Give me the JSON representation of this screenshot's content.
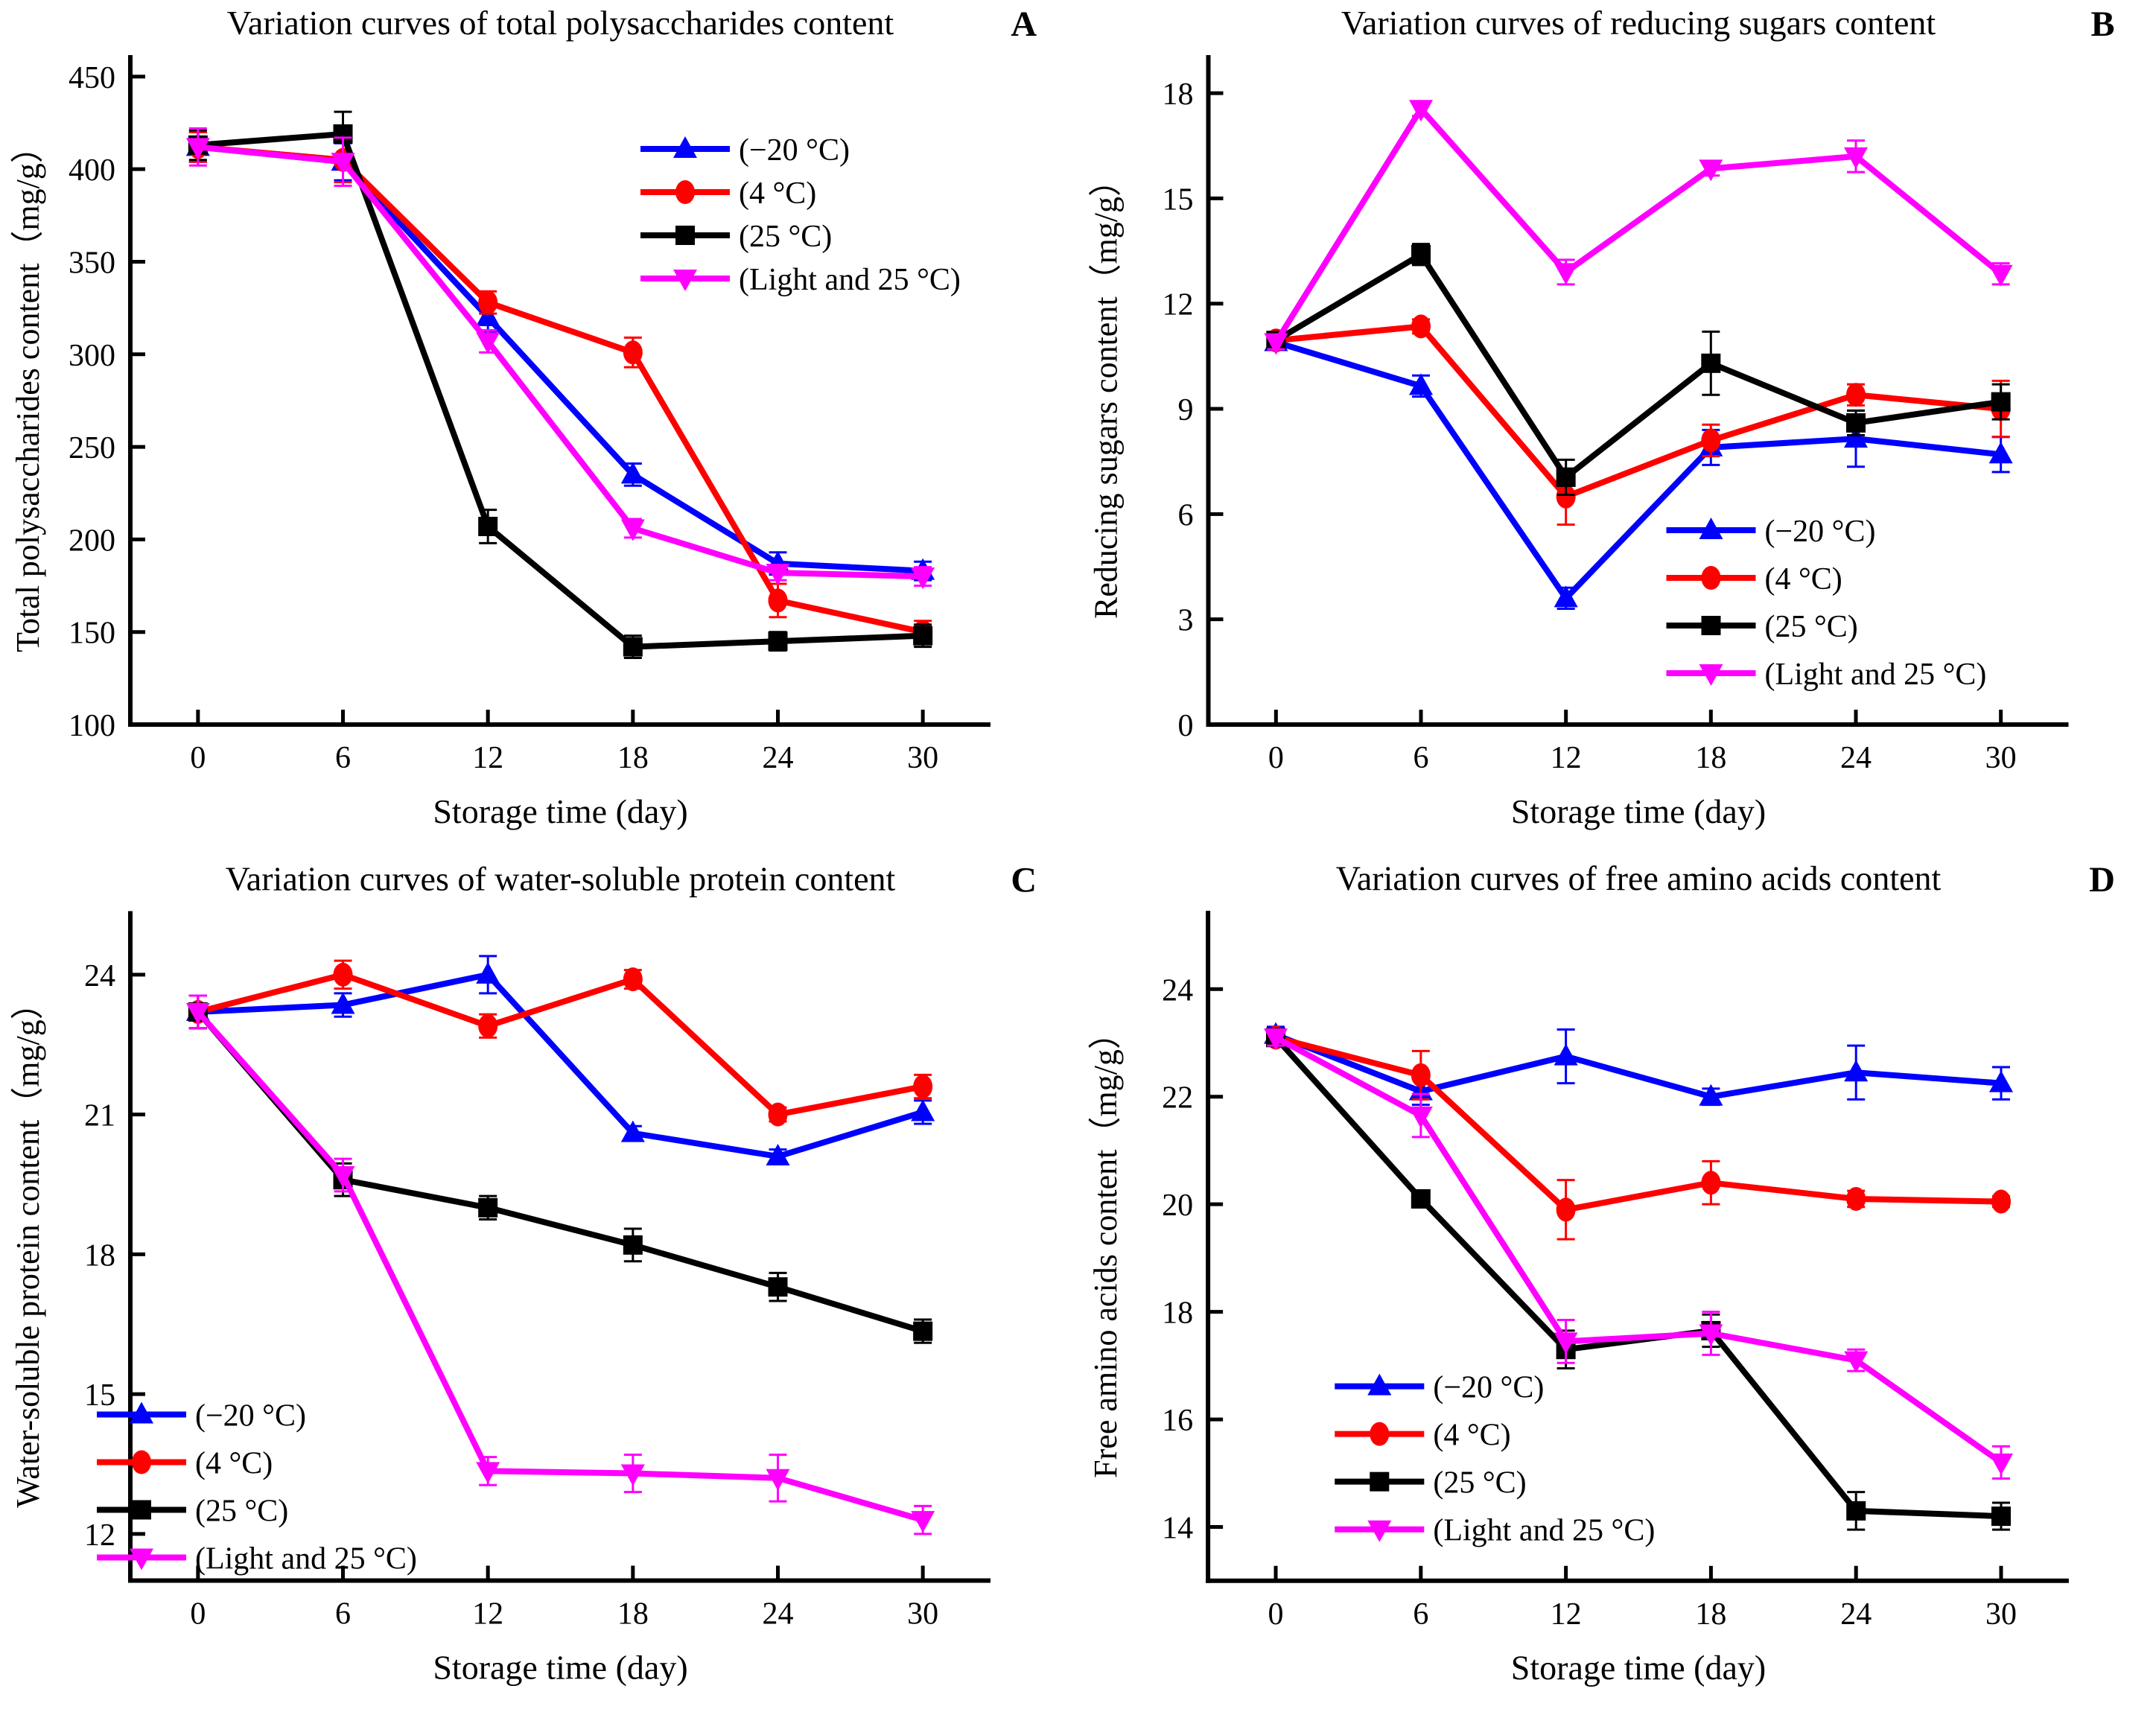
{
  "figure": {
    "background": "#ffffff",
    "xlabel": "Storage time (day)",
    "series_colors": {
      "minus20": "#0000ff",
      "plus4": "#ff0000",
      "plus25": "#000000",
      "light25": "#ff00ff"
    }
  },
  "chart_data": [
    {
      "type": "line",
      "panel_label": "A",
      "title": "Variation curves of total polysaccharides content",
      "xlabel": "Storage time (day)",
      "ylabel": "Total polysaccharides content（mg/g）",
      "x": [
        0,
        6,
        12,
        18,
        24,
        30
      ],
      "xticks": [
        0,
        6,
        12,
        18,
        24,
        30
      ],
      "yticks": [
        100,
        150,
        200,
        250,
        300,
        350,
        400,
        450
      ],
      "ylim": [
        100,
        460
      ],
      "xlim": [
        -2.8,
        32.8
      ],
      "grid": false,
      "legend_position": "upper-right-inside",
      "series": [
        {
          "name": "(−20 °C)",
          "color": "#0000ff",
          "marker": "triangle-up",
          "values": [
            412,
            404,
            320,
            235,
            187,
            183
          ],
          "errors": [
            8,
            10,
            8,
            6,
            6,
            5
          ]
        },
        {
          "name": "(4 °C)",
          "color": "#ff0000",
          "marker": "circle",
          "values": [
            412,
            405,
            328,
            301,
            167,
            150
          ],
          "errors": [
            8,
            12,
            6,
            8,
            9,
            6
          ]
        },
        {
          "name": "(25 °C)",
          "color": "#000000",
          "marker": "square",
          "values": [
            413,
            419,
            207,
            142,
            145,
            148
          ],
          "errors": [
            8,
            12,
            9,
            6,
            5,
            6
          ]
        },
        {
          "name": "(Light and 25 °C)",
          "color": "#ff00ff",
          "marker": "triangle-down",
          "values": [
            412,
            404,
            307,
            206,
            182,
            180
          ],
          "errors": [
            10,
            13,
            6,
            5,
            4,
            5
          ]
        }
      ]
    },
    {
      "type": "line",
      "panel_label": "B",
      "title": "Variation curves of reducing sugars content",
      "xlabel": "Storage time (day)",
      "ylabel": "Reducing sugars content（mg/g）",
      "x": [
        0,
        6,
        12,
        18,
        24,
        30
      ],
      "xticks": [
        0,
        6,
        12,
        18,
        24,
        30
      ],
      "yticks": [
        0,
        3,
        6,
        9,
        12,
        15,
        18
      ],
      "ylim": [
        0,
        19
      ],
      "xlim": [
        -2.8,
        32.8
      ],
      "grid": false,
      "legend_position": "lower-right-inside",
      "series": [
        {
          "name": "(−20 °C)",
          "color": "#0000ff",
          "marker": "triangle-up",
          "values": [
            10.9,
            9.65,
            3.6,
            7.9,
            8.15,
            7.7
          ],
          "errors": [
            0.15,
            0.3,
            0.3,
            0.5,
            0.8,
            0.5
          ]
        },
        {
          "name": "(4 °C)",
          "color": "#ff0000",
          "marker": "circle",
          "values": [
            10.95,
            11.35,
            6.5,
            8.1,
            9.4,
            9.0
          ],
          "errors": [
            0.15,
            0.2,
            0.8,
            0.45,
            0.3,
            0.8
          ]
        },
        {
          "name": "(25 °C)",
          "color": "#000000",
          "marker": "square",
          "values": [
            10.95,
            13.4,
            7.05,
            10.3,
            8.6,
            9.2
          ],
          "errors": [
            0.15,
            0.3,
            0.5,
            0.9,
            0.35,
            0.5
          ]
        },
        {
          "name": "(Light and 25 °C)",
          "color": "#ff00ff",
          "marker": "triangle-down",
          "values": [
            10.9,
            17.55,
            12.9,
            15.85,
            16.2,
            12.85
          ],
          "errors": [
            0.2,
            0.2,
            0.35,
            0.2,
            0.45,
            0.3
          ]
        }
      ]
    },
    {
      "type": "line",
      "panel_label": "C",
      "title": "Variation curves of water-soluble protein content",
      "xlabel": "Storage time (day)",
      "ylabel": "Water-soluble protein content（mg/g）",
      "x": [
        0,
        6,
        12,
        18,
        24,
        30
      ],
      "xticks": [
        0,
        6,
        12,
        18,
        24,
        30
      ],
      "yticks": [
        12,
        15,
        18,
        21,
        24
      ],
      "ylim": [
        11,
        25.3
      ],
      "xlim": [
        -2.8,
        32.8
      ],
      "grid": false,
      "legend_position": "lower-left-inside",
      "series": [
        {
          "name": "(−20 °C)",
          "color": "#0000ff",
          "marker": "triangle-up",
          "values": [
            23.2,
            23.35,
            24.0,
            20.6,
            20.1,
            21.05
          ],
          "errors": [
            0.35,
            0.25,
            0.4,
            0.15,
            0.15,
            0.25
          ]
        },
        {
          "name": "(4 °C)",
          "color": "#ff0000",
          "marker": "circle",
          "values": [
            23.2,
            24.0,
            22.9,
            23.9,
            21.0,
            21.6
          ],
          "errors": [
            0.35,
            0.3,
            0.25,
            0.2,
            0.15,
            0.25
          ]
        },
        {
          "name": "(25 °C)",
          "color": "#000000",
          "marker": "square",
          "values": [
            23.2,
            19.6,
            19.0,
            18.2,
            17.3,
            16.35
          ],
          "errors": [
            0.35,
            0.35,
            0.25,
            0.35,
            0.3,
            0.25
          ]
        },
        {
          "name": "(Light and 25 °C)",
          "color": "#ff00ff",
          "marker": "triangle-down",
          "values": [
            23.2,
            19.7,
            13.35,
            13.3,
            13.2,
            12.3
          ],
          "errors": [
            0.35,
            0.35,
            0.3,
            0.4,
            0.5,
            0.3
          ]
        }
      ]
    },
    {
      "type": "line",
      "panel_label": "D",
      "title": "Variation curves of free amino acids content",
      "xlabel": "Storage time (day)",
      "ylabel": "Free amino acids content（mg/g）",
      "x": [
        0,
        6,
        12,
        18,
        24,
        30
      ],
      "xticks": [
        0,
        6,
        12,
        18,
        24,
        30
      ],
      "yticks": [
        14,
        16,
        18,
        20,
        22,
        24
      ],
      "ylim": [
        13,
        25.4
      ],
      "xlim": [
        -2.8,
        32.8
      ],
      "grid": false,
      "legend_position": "center-left-inside",
      "series": [
        {
          "name": "(−20 °C)",
          "color": "#0000ff",
          "marker": "triangle-up",
          "values": [
            23.15,
            22.1,
            22.75,
            22.0,
            22.45,
            22.25
          ],
          "errors": [
            0.15,
            0.25,
            0.5,
            0.15,
            0.5,
            0.3
          ]
        },
        {
          "name": "(4 °C)",
          "color": "#ff0000",
          "marker": "circle",
          "values": [
            23.1,
            22.4,
            19.9,
            20.4,
            20.1,
            20.05
          ],
          "errors": [
            0.15,
            0.45,
            0.55,
            0.4,
            0.15,
            0.1
          ]
        },
        {
          "name": "(25 °C)",
          "color": "#000000",
          "marker": "square",
          "values": [
            23.1,
            20.1,
            17.3,
            17.65,
            14.3,
            14.2
          ],
          "errors": [
            0.15,
            0.1,
            0.35,
            0.3,
            0.35,
            0.25
          ]
        },
        {
          "name": "(Light and 25 °C)",
          "color": "#ff00ff",
          "marker": "triangle-down",
          "values": [
            23.1,
            21.65,
            17.45,
            17.6,
            17.1,
            15.2
          ],
          "errors": [
            0.15,
            0.4,
            0.4,
            0.4,
            0.2,
            0.3
          ]
        }
      ]
    }
  ]
}
